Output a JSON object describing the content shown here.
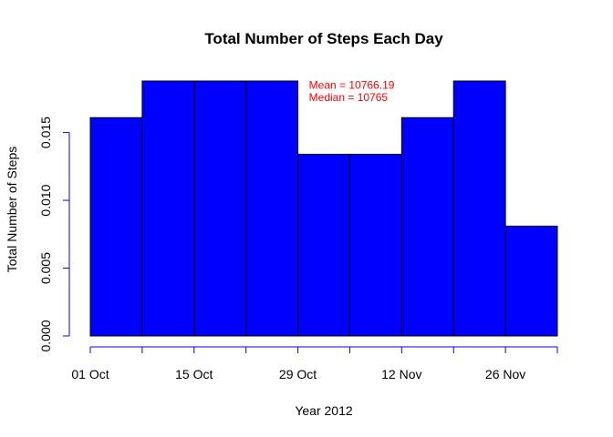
{
  "chart_data": {
    "type": "bar",
    "title": "Total Number of Steps Each Day",
    "xlabel": "Year 2012",
    "ylabel": "Total Number of Steps",
    "bins": [
      {
        "start": "2012-10-01",
        "end": "2012-10-08",
        "value": 0.0161
      },
      {
        "start": "2012-10-08",
        "end": "2012-10-15",
        "value": 0.0188
      },
      {
        "start": "2012-10-15",
        "end": "2012-10-22",
        "value": 0.0188
      },
      {
        "start": "2012-10-22",
        "end": "2012-10-29",
        "value": 0.0188
      },
      {
        "start": "2012-10-29",
        "end": "2012-11-05",
        "value": 0.0134
      },
      {
        "start": "2012-11-05",
        "end": "2012-11-12",
        "value": 0.0134
      },
      {
        "start": "2012-11-12",
        "end": "2012-11-19",
        "value": 0.0161
      },
      {
        "start": "2012-11-19",
        "end": "2012-11-26",
        "value": 0.0188
      },
      {
        "start": "2012-11-26",
        "end": "2012-12-03",
        "value": 0.0081
      }
    ],
    "xlim": [
      "2012-10-01",
      "2012-12-03"
    ],
    "ylim": [
      0,
      0.0188
    ],
    "x_ticks": [
      {
        "date": "2012-10-01",
        "label": "01 Oct"
      },
      {
        "date": "2012-10-15",
        "label": "15 Oct"
      },
      {
        "date": "2012-10-29",
        "label": "29 Oct"
      },
      {
        "date": "2012-11-12",
        "label": "12 Nov"
      },
      {
        "date": "2012-11-26",
        "label": "26 Nov"
      }
    ],
    "x_minor_ticks": [
      "2012-10-08",
      "2012-10-22",
      "2012-11-05",
      "2012-11-19",
      "2012-12-03"
    ],
    "y_ticks": [
      {
        "value": 0.0,
        "label": "0.000"
      },
      {
        "value": 0.005,
        "label": "0.005"
      },
      {
        "value": 0.01,
        "label": "0.010"
      },
      {
        "value": 0.015,
        "label": "0.015"
      }
    ],
    "annotations": [
      {
        "text": "Mean = 10766.19",
        "date": "2012-10-30",
        "value": 0.0185
      },
      {
        "text": "Median = 10765",
        "date": "2012-10-30",
        "value": 0.0176
      }
    ],
    "grid": false,
    "colors": {
      "bar_fill": "#0000ff",
      "bar_edge": "#000000",
      "axis": "#0000ff",
      "annotation": "#ff0000"
    }
  }
}
